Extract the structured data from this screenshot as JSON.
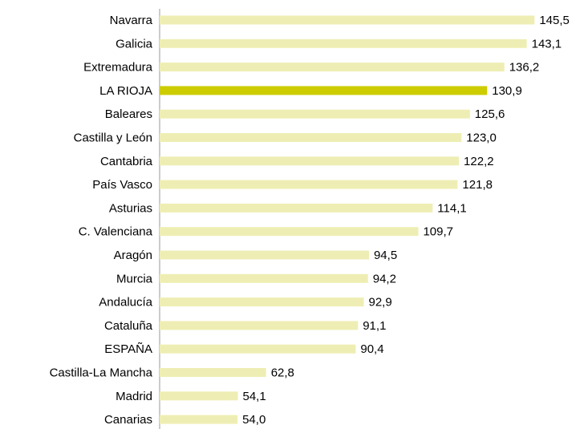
{
  "chart_data": {
    "type": "barh",
    "categories": [
      "Navarra",
      "Galicia",
      "Extremadura",
      "LA RIOJA",
      "Baleares",
      "Castilla y León",
      "Cantabria",
      "País Vasco",
      "Asturias",
      "C. Valenciana",
      "Aragón",
      "Murcia",
      "Andalucía",
      "Cataluña",
      "ESPAÑA",
      "Castilla-La Mancha",
      "Madrid",
      "Canarias"
    ],
    "values": [
      145.5,
      143.1,
      136.2,
      130.9,
      125.6,
      123.0,
      122.2,
      121.8,
      114.1,
      109.7,
      94.5,
      94.2,
      92.9,
      91.1,
      90.4,
      62.8,
      54.1,
      54.0
    ],
    "value_labels": [
      "145,5",
      "143,1",
      "136,2",
      "130,9",
      "125,6",
      "123,0",
      "122,2",
      "121,8",
      "114,1",
      "109,7",
      "94,5",
      "94,2",
      "92,9",
      "91,1",
      "90,4",
      "62,8",
      "54,1",
      "54,0"
    ],
    "colors": [
      "#eeeeb4",
      "#eeeeb4",
      "#eeeeb4",
      "#cccc00",
      "#eeeeb4",
      "#eeeeb4",
      "#eeeeb4",
      "#eeeeb4",
      "#eeeeb4",
      "#eeeeb4",
      "#eeeeb4",
      "#eeeeb4",
      "#eeeeb4",
      "#eeeeb4",
      "#eeeeb4",
      "#eeeeb4",
      "#eeeeb4",
      "#eeeeb4"
    ],
    "xlim": [
      30,
      160
    ]
  }
}
